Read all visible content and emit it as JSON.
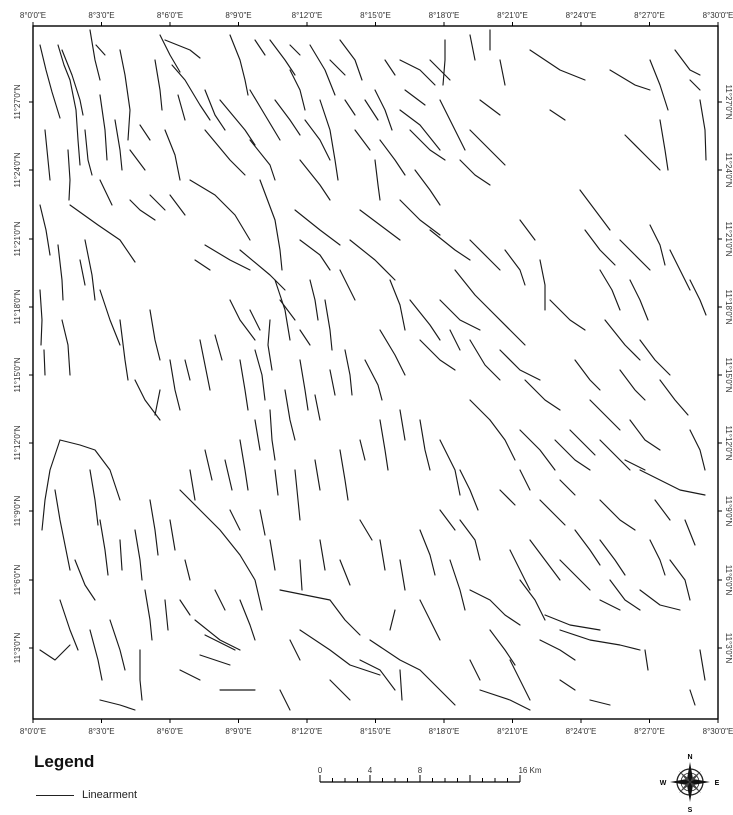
{
  "map": {
    "lon_labels": [
      "8°0'0\"E",
      "8°3'0\"E",
      "8°6'0\"E",
      "8°9'0\"E",
      "8°12'0\"E",
      "8°15'0\"E",
      "8°18'0\"E",
      "8°21'0\"E",
      "8°24'0\"E",
      "8°27'0\"E",
      "8°30'0\"E"
    ],
    "lat_labels": [
      "11°3'0\"N",
      "11°6'0\"N",
      "11°9'0\"N",
      "11°12'0\"N",
      "11°15'0\"N",
      "11°18'0\"N",
      "11°21'0\"N",
      "11°24'0\"N",
      "11°27'0\"N"
    ]
  },
  "legend": {
    "title": "Legend",
    "item_label": "Linearment"
  },
  "scale_bar": {
    "labels": [
      "0",
      "4",
      "8",
      "16 Km"
    ]
  },
  "north_arrow": {
    "n": "N",
    "s": "S",
    "e": "E",
    "w": "W"
  },
  "colors": {
    "lineament": "#1a1a1a",
    "frame": "#000000"
  }
}
